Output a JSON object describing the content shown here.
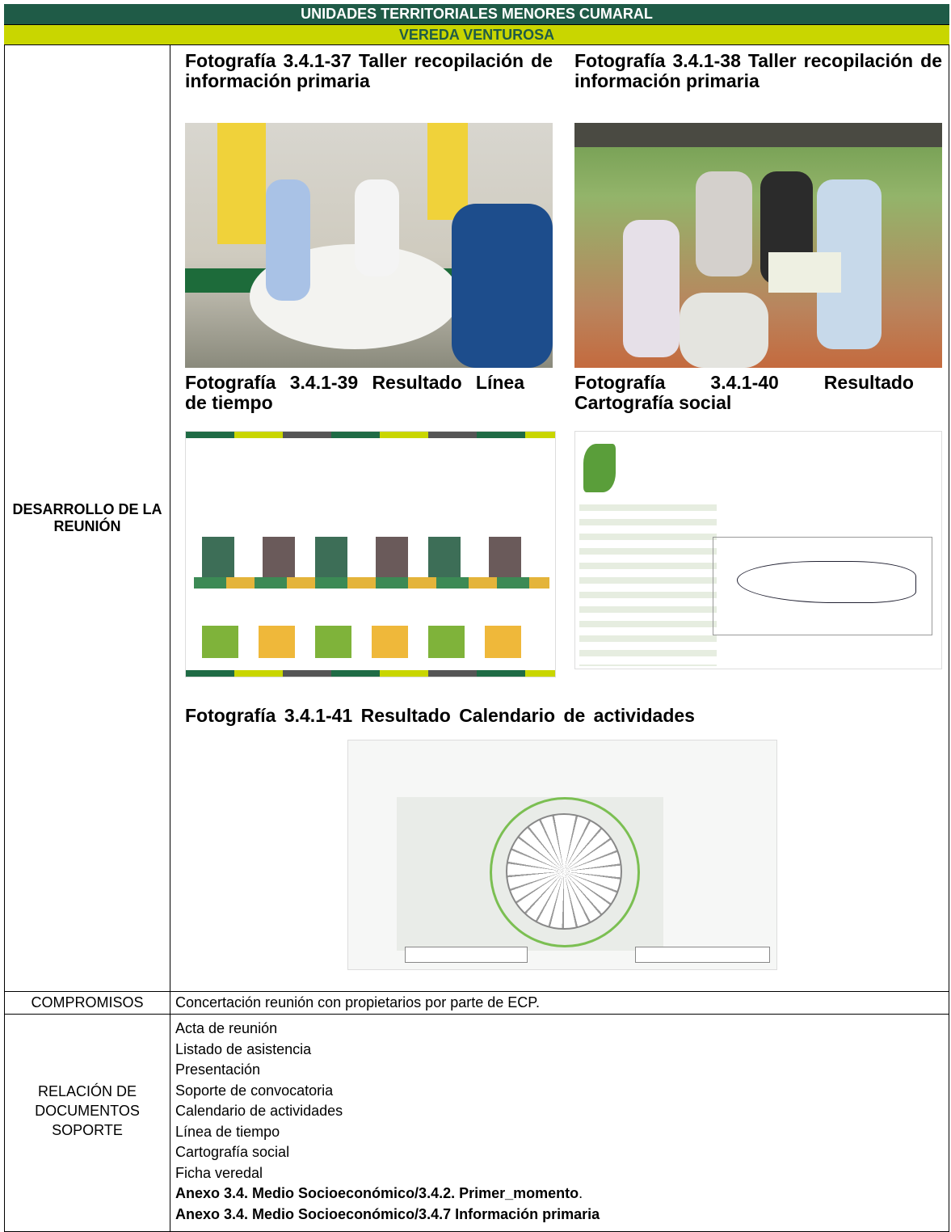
{
  "header": {
    "title": "UNIDADES TERRITORIALES MENORES CUMARAL",
    "subtitle": "VEREDA VENTUROSA"
  },
  "desarrollo": {
    "label": "DESARROLLO DE LA REUNIÓN",
    "captions": [
      "Fotografía 3.4.1-37 Taller recopilación de información primaria",
      "Fotografía 3.4.1-38 Taller recopilación de información primaria",
      "Fotografía 3.4.1-39 Resultado Línea de tiempo",
      "Fotografía 3.4.1-40 Resultado Cartografía social",
      "Fotografía 3.4.1-41 Resultado Calendario de actividades"
    ]
  },
  "compromisos": {
    "label": "COMPROMISOS",
    "text": "Concertación reunión con propietarios por parte de ECP."
  },
  "documentos": {
    "label": "RELACIÓN DE DOCUMENTOS SOPORTE",
    "items": [
      "Acta de reunión",
      "Listado de asistencia",
      "Presentación",
      "Soporte de convocatoria",
      "Calendario de actividades",
      "Línea de tiempo",
      "Cartografía social",
      "Ficha veredal"
    ],
    "annexes": [
      {
        "text": "Anexo 3.4. Medio Socioeconómico/3.4.2. Primer_momento",
        "suffix": "."
      },
      {
        "text": "Anexo 3.4. Medio Socioeconómico/3.4.7 Información primaria"
      }
    ]
  }
}
